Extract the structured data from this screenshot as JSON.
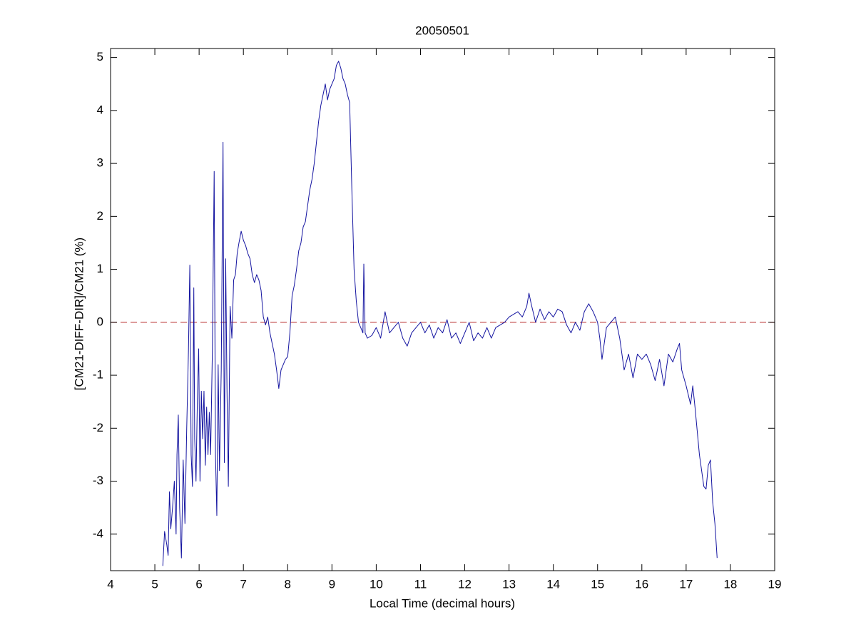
{
  "chart_data": {
    "type": "line",
    "title": "20050501",
    "x_label": "Local Time (decimal hours)",
    "y_label": "[CM21-DIFF-DIR]/CM21 (%)",
    "xlim": [
      4,
      19
    ],
    "ylim": [
      -4.69,
      5.17
    ],
    "xticks": [
      4,
      5,
      6,
      7,
      8,
      9,
      10,
      11,
      12,
      13,
      14,
      15,
      16,
      17,
      18,
      19
    ],
    "yticks": [
      -4,
      -3,
      -2,
      -1,
      0,
      1,
      2,
      3,
      4,
      5
    ],
    "grid": false,
    "reference_line": {
      "value": 0,
      "color": "#c04040",
      "dash": "dashed"
    },
    "x": [
      5.18,
      5.22,
      5.27,
      5.3,
      5.33,
      5.36,
      5.4,
      5.44,
      5.48,
      5.5,
      5.53,
      5.56,
      5.6,
      5.64,
      5.68,
      5.72,
      5.76,
      5.79,
      5.82,
      5.85,
      5.88,
      5.9,
      5.93,
      5.96,
      5.99,
      6.02,
      6.05,
      6.08,
      6.11,
      6.14,
      6.17,
      6.2,
      6.23,
      6.26,
      6.3,
      6.34,
      6.37,
      6.4,
      6.43,
      6.46,
      6.5,
      6.54,
      6.57,
      6.6,
      6.63,
      6.66,
      6.7,
      6.74,
      6.78,
      6.82,
      6.86,
      6.9,
      6.95,
      7.0,
      7.05,
      7.1,
      7.15,
      7.2,
      7.25,
      7.3,
      7.35,
      7.4,
      7.45,
      7.5,
      7.55,
      7.6,
      7.65,
      7.7,
      7.75,
      7.8,
      7.85,
      7.9,
      7.95,
      8.0,
      8.05,
      8.1,
      8.15,
      8.2,
      8.25,
      8.3,
      8.35,
      8.4,
      8.45,
      8.5,
      8.55,
      8.6,
      8.65,
      8.7,
      8.75,
      8.8,
      8.85,
      8.9,
      8.95,
      9.0,
      9.05,
      9.1,
      9.15,
      9.2,
      9.25,
      9.3,
      9.35,
      9.4,
      9.45,
      9.5,
      9.55,
      9.6,
      9.65,
      9.7,
      9.72,
      9.75,
      9.8,
      9.9,
      10.0,
      10.1,
      10.2,
      10.3,
      10.4,
      10.5,
      10.6,
      10.7,
      10.8,
      10.9,
      11.0,
      11.1,
      11.2,
      11.3,
      11.4,
      11.5,
      11.6,
      11.7,
      11.8,
      11.9,
      12.0,
      12.1,
      12.2,
      12.3,
      12.4,
      12.5,
      12.6,
      12.7,
      12.8,
      12.9,
      13.0,
      13.1,
      13.2,
      13.3,
      13.4,
      13.45,
      13.5,
      13.6,
      13.7,
      13.8,
      13.9,
      14.0,
      14.1,
      14.2,
      14.3,
      14.4,
      14.5,
      14.6,
      14.7,
      14.8,
      14.9,
      15.0,
      15.05,
      15.1,
      15.2,
      15.3,
      15.4,
      15.5,
      15.6,
      15.7,
      15.8,
      15.9,
      16.0,
      16.1,
      16.2,
      16.3,
      16.4,
      16.5,
      16.6,
      16.7,
      16.8,
      16.85,
      16.9,
      17.0,
      17.1,
      17.15,
      17.2,
      17.3,
      17.4,
      17.45,
      17.5,
      17.55,
      17.6,
      17.65,
      17.7
    ],
    "series": [
      {
        "name": "[CM21-DIFF-DIR]/CM21",
        "color": "#1414a0",
        "values": [
          -4.6,
          -3.95,
          -4.2,
          -4.4,
          -3.2,
          -3.9,
          -3.5,
          -3.0,
          -4.0,
          -2.5,
          -1.75,
          -3.5,
          -4.45,
          -2.6,
          -3.8,
          -2.0,
          -0.5,
          1.08,
          -2.5,
          -3.1,
          0.65,
          -2.2,
          -3.0,
          -1.5,
          -0.5,
          -3.0,
          -1.3,
          -2.2,
          -1.3,
          -2.7,
          -1.6,
          -2.5,
          -1.7,
          -2.5,
          -0.5,
          2.85,
          -2.5,
          -3.65,
          -0.8,
          -2.8,
          -0.9,
          3.4,
          -2.65,
          1.2,
          -1.3,
          -3.1,
          0.3,
          -0.3,
          0.8,
          0.9,
          1.3,
          1.5,
          1.72,
          1.55,
          1.45,
          1.3,
          1.2,
          0.9,
          0.75,
          0.9,
          0.8,
          0.6,
          0.1,
          -0.05,
          0.1,
          -0.2,
          -0.4,
          -0.6,
          -0.9,
          -1.25,
          -0.9,
          -0.8,
          -0.7,
          -0.65,
          -0.2,
          0.5,
          0.7,
          1.0,
          1.35,
          1.5,
          1.8,
          1.9,
          2.2,
          2.5,
          2.7,
          3.0,
          3.4,
          3.8,
          4.1,
          4.3,
          4.5,
          4.2,
          4.4,
          4.5,
          4.6,
          4.85,
          4.93,
          4.8,
          4.6,
          4.5,
          4.3,
          4.15,
          2.5,
          1.0,
          0.4,
          0.0,
          -0.1,
          -0.2,
          1.1,
          -0.2,
          -0.3,
          -0.25,
          -0.1,
          -0.3,
          0.2,
          -0.2,
          -0.1,
          0.0,
          -0.3,
          -0.45,
          -0.2,
          -0.1,
          0.0,
          -0.2,
          -0.05,
          -0.3,
          -0.1,
          -0.2,
          0.05,
          -0.3,
          -0.2,
          -0.4,
          -0.2,
          0.0,
          -0.35,
          -0.2,
          -0.3,
          -0.1,
          -0.3,
          -0.1,
          -0.05,
          0.0,
          0.1,
          0.15,
          0.2,
          0.1,
          0.3,
          0.55,
          0.35,
          0.0,
          0.25,
          0.05,
          0.2,
          0.1,
          0.25,
          0.2,
          -0.05,
          -0.2,
          0.0,
          -0.15,
          0.2,
          0.35,
          0.2,
          0.0,
          -0.3,
          -0.7,
          -0.1,
          0.0,
          0.1,
          -0.3,
          -0.9,
          -0.6,
          -1.05,
          -0.6,
          -0.7,
          -0.6,
          -0.8,
          -1.1,
          -0.7,
          -1.2,
          -0.6,
          -0.75,
          -0.5,
          -0.4,
          -0.9,
          -1.2,
          -1.55,
          -1.2,
          -1.6,
          -2.5,
          -3.1,
          -3.15,
          -2.7,
          -2.6,
          -3.4,
          -3.8,
          -4.45
        ]
      }
    ]
  }
}
